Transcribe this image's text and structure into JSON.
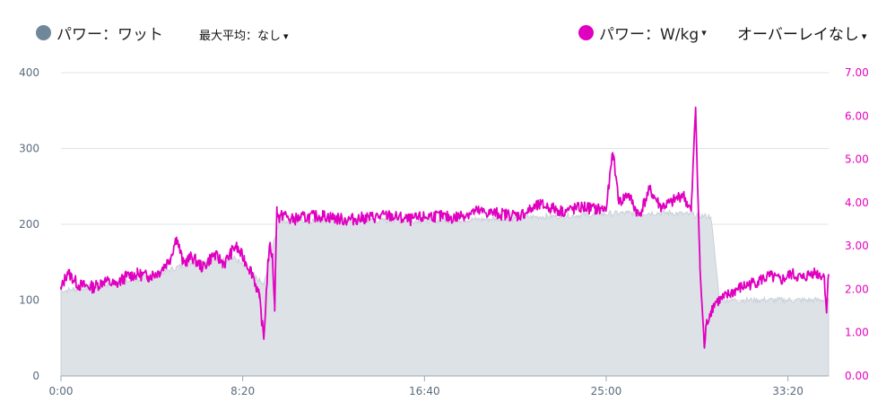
{
  "legend": {
    "left_label": "パワー：ワット",
    "left_color": "#6e8799",
    "max_avg_label": "最大平均：なし",
    "right_label": "パワー：W/kg",
    "right_color": "#e000c0",
    "overlay_label": "オーバーレイなし",
    "caret": "▾"
  },
  "chart_data": {
    "type": "area",
    "x_unit": "minutes",
    "x_tick_labels": [
      "0:00",
      "8:20",
      "16:40",
      "25:00",
      "33:20"
    ],
    "x_tick_values_min": [
      0,
      8.333,
      16.667,
      25,
      33.333
    ],
    "xlim": [
      0,
      35.2
    ],
    "left_axis": {
      "ylim": [
        0,
        400
      ],
      "ticks": [
        "0",
        "100",
        "200",
        "300",
        "400"
      ]
    },
    "right_axis": {
      "ylim": [
        0,
        7
      ],
      "ticks": [
        "0.00",
        "1.00",
        "2.00",
        "3.00",
        "4.00",
        "5.00",
        "6.00",
        "7.00"
      ]
    },
    "series": [
      {
        "axis": "left",
        "color": "#dde2e7",
        "x": [
          0,
          2,
          4,
          6,
          8,
          9.3,
          10,
          14,
          18,
          22,
          26,
          28,
          29.8,
          30.2,
          32,
          35.2
        ],
        "values": [
          112,
          120,
          130,
          150,
          155,
          120,
          205,
          205,
          205,
          210,
          215,
          215,
          210,
          100,
          100,
          100
        ]
      },
      {
        "axis": "right",
        "color": "#e000c0",
        "x": [
          0,
          0.3,
          0.8,
          1.5,
          2,
          2.5,
          3,
          3.5,
          4,
          4.5,
          5,
          5.3,
          5.6,
          6,
          6.5,
          7,
          7.5,
          8,
          8.4,
          8.8,
          9.1,
          9.3,
          9.5,
          9.6,
          9.7,
          9.8,
          9.9,
          10.0,
          10.2,
          10.5,
          11,
          12,
          13,
          14,
          15,
          16,
          17,
          18,
          19,
          20,
          21,
          22,
          23,
          24,
          24.5,
          25,
          25.3,
          25.6,
          26,
          26.5,
          27,
          27.5,
          28,
          28.5,
          28.9,
          29.1,
          29.3,
          29.5,
          29.6,
          29.8,
          30,
          30.4,
          31,
          31.5,
          32,
          32.5,
          33,
          33.5,
          34,
          34.5,
          35,
          35.1,
          35.2
        ],
        "values": [
          2.0,
          2.4,
          2.1,
          2.05,
          2.2,
          2.1,
          2.3,
          2.35,
          2.3,
          2.4,
          2.7,
          3.2,
          2.6,
          2.75,
          2.5,
          2.8,
          2.6,
          3.0,
          2.7,
          2.35,
          1.8,
          0.85,
          2.7,
          3.0,
          2.7,
          1.6,
          3.9,
          3.6,
          3.75,
          3.6,
          3.65,
          3.7,
          3.6,
          3.65,
          3.7,
          3.6,
          3.7,
          3.65,
          3.8,
          3.75,
          3.7,
          3.95,
          3.8,
          3.9,
          3.85,
          3.85,
          5.15,
          4.0,
          4.2,
          3.7,
          4.3,
          3.9,
          4.0,
          4.2,
          3.8,
          6.2,
          2.5,
          0.65,
          1.2,
          1.5,
          1.7,
          1.8,
          2.0,
          2.1,
          2.2,
          2.3,
          2.2,
          2.35,
          2.25,
          2.4,
          2.3,
          1.5,
          2.35
        ]
      }
    ]
  }
}
